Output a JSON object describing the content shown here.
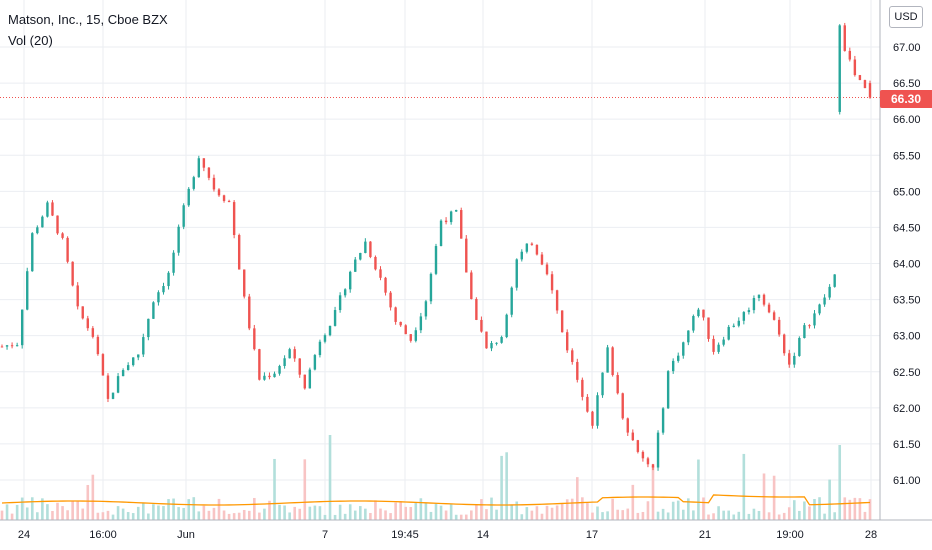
{
  "legend": {
    "title": "Matson, Inc., 15, Cboe BZX",
    "volume": "Vol (20)"
  },
  "currency": "USD",
  "last_price": "66.30",
  "colors": {
    "up": "#26a69a",
    "down": "#ef5350",
    "up_vol": "#b2dfdb",
    "down_vol": "#f8c4c4",
    "vol_ma": "#ff9800",
    "grid": "#ebeef2",
    "axis": "#b2b5be"
  },
  "chart_data": {
    "type": "candlestick",
    "title": "Matson, Inc., 15, Cboe BZX",
    "y_ticks": [
      "61.00",
      "61.50",
      "62.00",
      "62.50",
      "63.00",
      "63.50",
      "64.00",
      "64.50",
      "65.00",
      "65.50",
      "66.00",
      "66.50",
      "67.00"
    ],
    "x_ticks": [
      "24",
      "16:00",
      "Jun",
      "7",
      "19:45",
      "14",
      "17",
      "21",
      "19:00",
      "28"
    ],
    "ylim": [
      60.6,
      67.5
    ],
    "last_price": 66.3,
    "close_path": [
      [
        0,
        62.85
      ],
      [
        3,
        62.9
      ],
      [
        6,
        64.4
      ],
      [
        9,
        64.8
      ],
      [
        12,
        64.3
      ],
      [
        15,
        63.35
      ],
      [
        18,
        63.0
      ],
      [
        21,
        62.1
      ],
      [
        24,
        62.55
      ],
      [
        27,
        62.75
      ],
      [
        30,
        63.5
      ],
      [
        33,
        63.85
      ],
      [
        36,
        64.75
      ],
      [
        39,
        65.5
      ],
      [
        42,
        65.05
      ],
      [
        45,
        64.85
      ],
      [
        48,
        63.5
      ],
      [
        51,
        62.4
      ],
      [
        54,
        62.5
      ],
      [
        57,
        62.8
      ],
      [
        60,
        62.3
      ],
      [
        63,
        62.95
      ],
      [
        66,
        63.3
      ],
      [
        69,
        63.9
      ],
      [
        72,
        64.3
      ],
      [
        75,
        63.8
      ],
      [
        78,
        63.2
      ],
      [
        81,
        62.95
      ],
      [
        84,
        63.5
      ],
      [
        87,
        64.6
      ],
      [
        90,
        64.7
      ],
      [
        93,
        63.5
      ],
      [
        96,
        62.8
      ],
      [
        99,
        63.0
      ],
      [
        102,
        64.05
      ],
      [
        105,
        64.3
      ],
      [
        108,
        63.9
      ],
      [
        111,
        63.05
      ],
      [
        114,
        62.4
      ],
      [
        117,
        61.8
      ],
      [
        120,
        62.8
      ],
      [
        123,
        61.9
      ],
      [
        126,
        61.35
      ],
      [
        129,
        61.15
      ],
      [
        132,
        62.5
      ],
      [
        135,
        62.9
      ],
      [
        138,
        63.4
      ],
      [
        141,
        62.8
      ],
      [
        144,
        63.1
      ],
      [
        147,
        63.3
      ],
      [
        150,
        63.6
      ],
      [
        153,
        63.2
      ],
      [
        156,
        62.6
      ],
      [
        159,
        63.1
      ],
      [
        162,
        63.4
      ],
      [
        165,
        63.8
      ],
      [
        166,
        67.2
      ],
      [
        169,
        66.6
      ],
      [
        172,
        66.3
      ]
    ],
    "n_bars": 173
  }
}
